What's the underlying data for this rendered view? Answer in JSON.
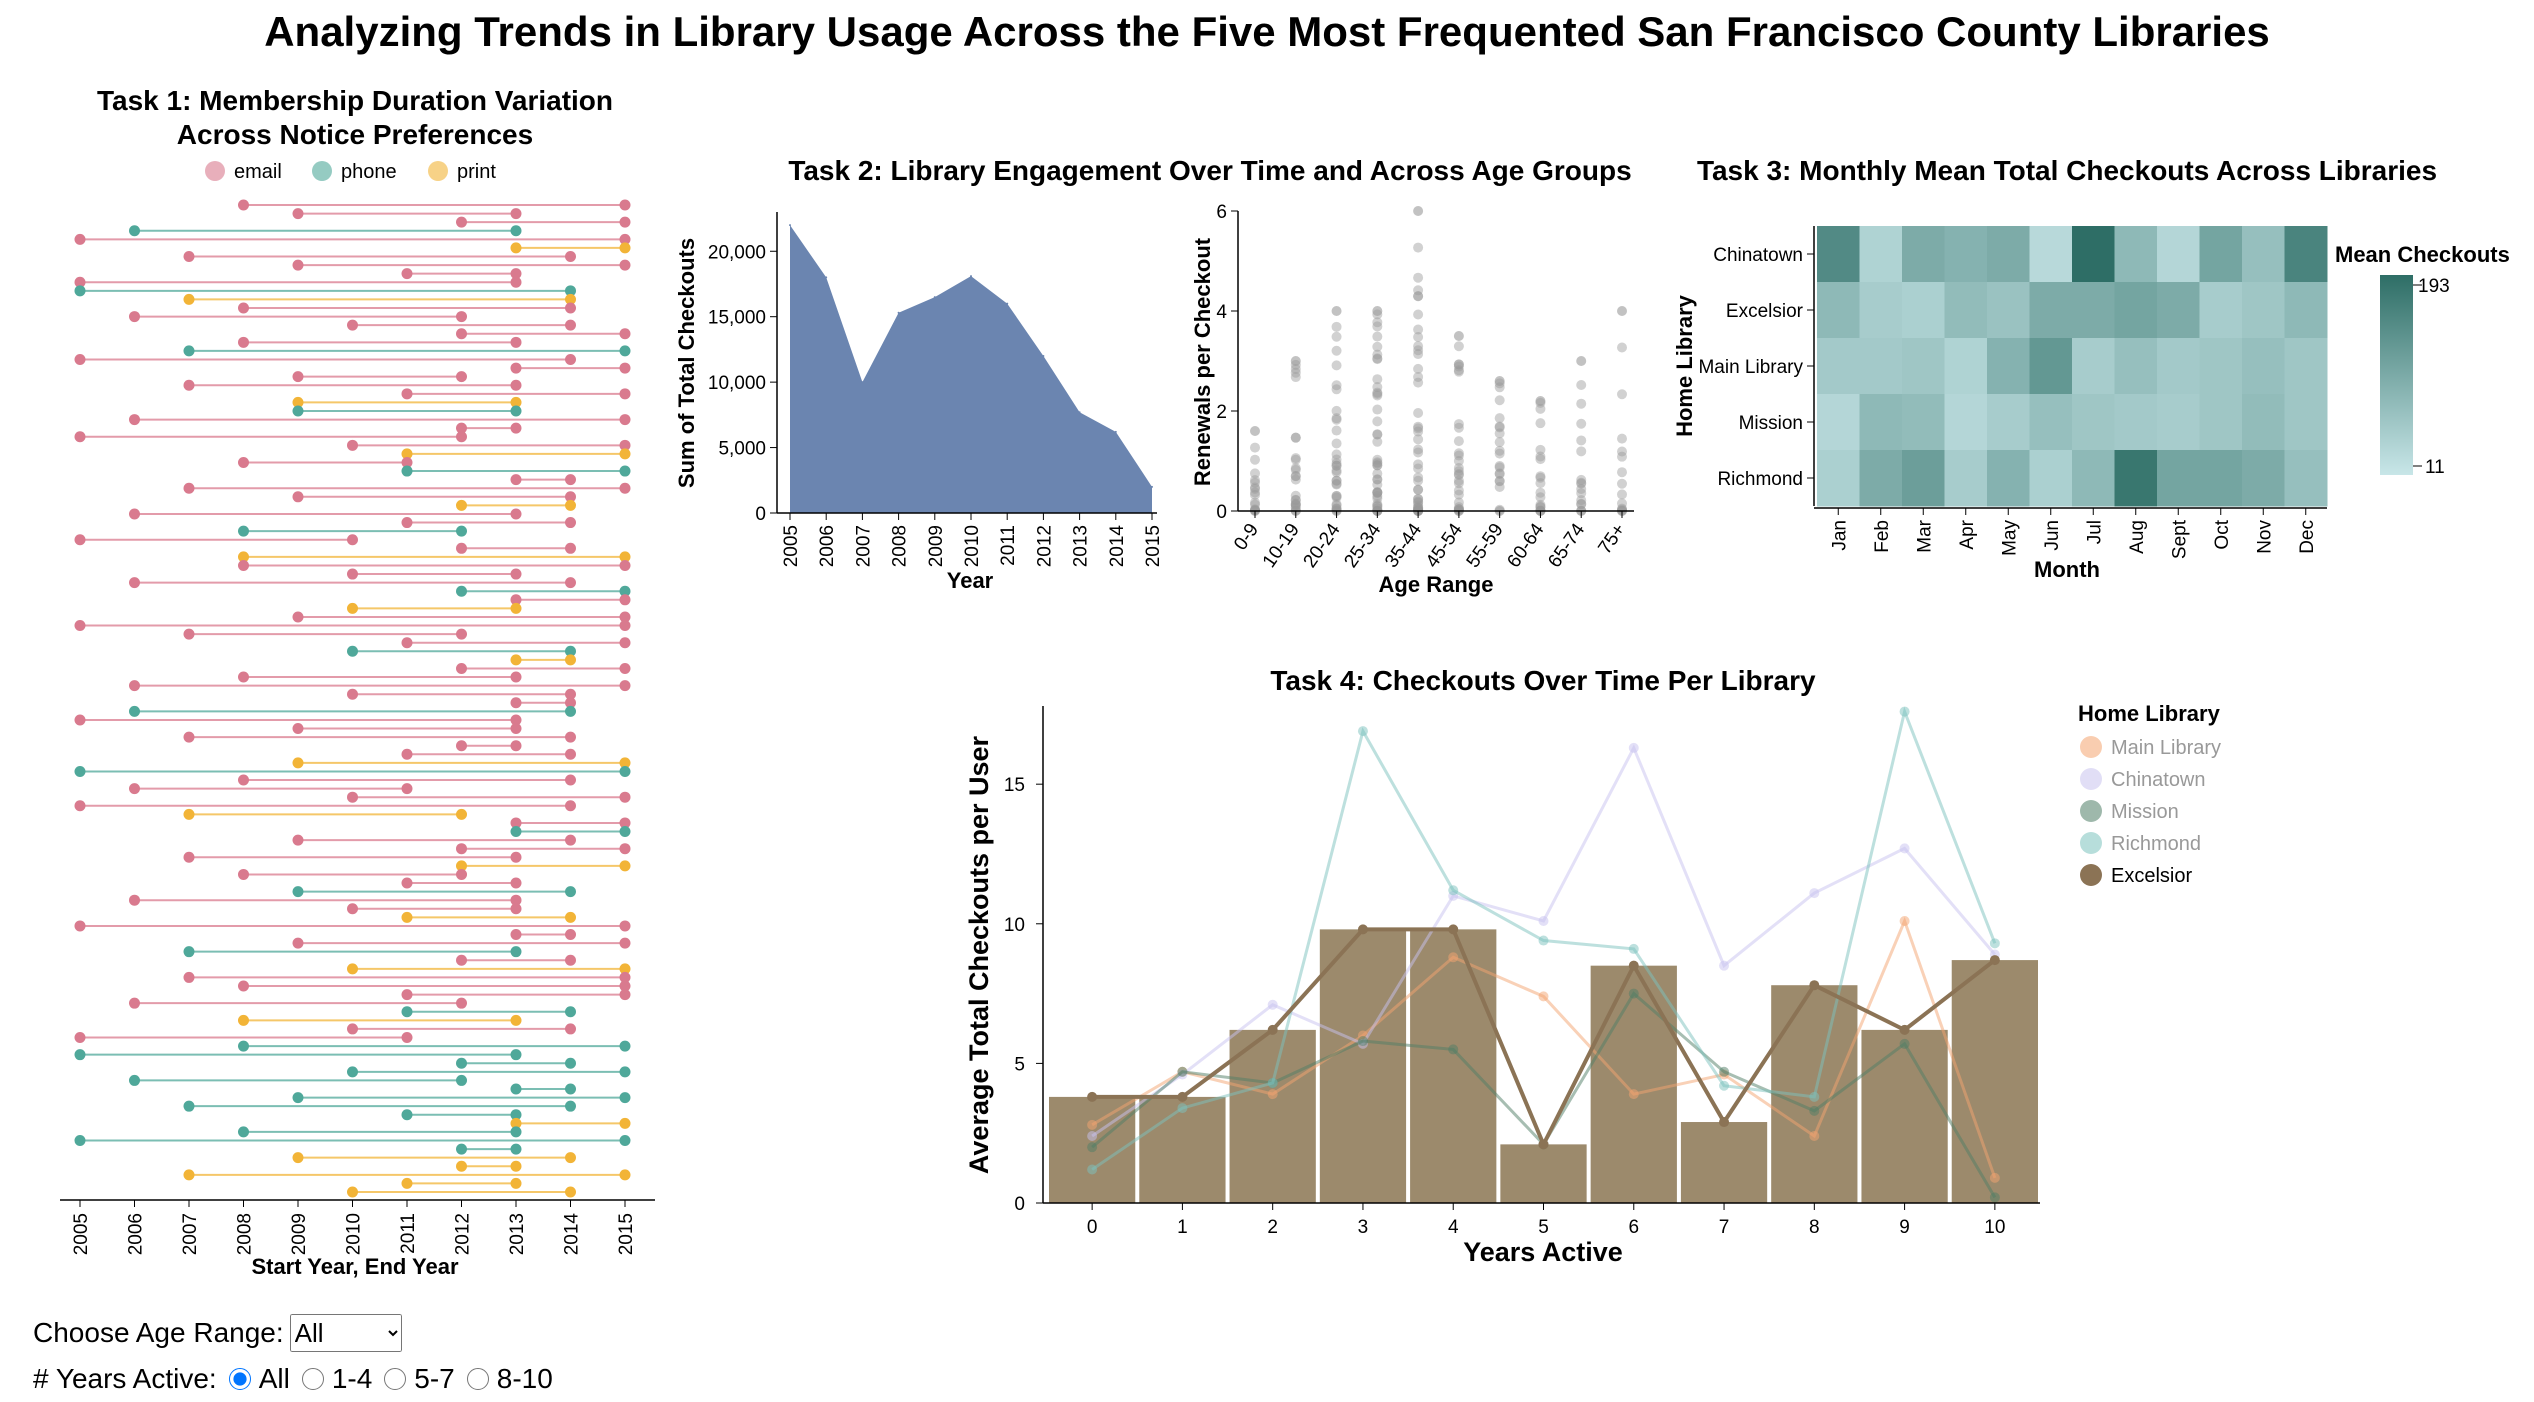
{
  "title": "Analyzing Trends in Library Usage Across the Five Most Frequented San Francisco County Libraries",
  "colors": {
    "email": "#d97a8e",
    "phone": "#4fa89a",
    "print": "#f2b437",
    "area": "#6b85b0",
    "grey": "#9a9a9a",
    "excelsior": "#8b7355",
    "main_library": "#f4a46f",
    "chinatown": "#c8c2ef",
    "mission": "#4f7d66",
    "richmond": "#7cc2bd"
  },
  "controls": {
    "age_label": "Choose Age Range:",
    "age_selected": "All",
    "years_label": "# Years Active:",
    "years_options": [
      "All",
      "1-4",
      "5-7",
      "8-10"
    ],
    "years_selected": "All"
  },
  "chart_data": [
    {
      "type": "scatter",
      "title": "Task 1: Membership Duration Variation Across Notice Preferences",
      "xlabel": "Start Year, End Year",
      "x_ticks": [
        "2005",
        "2006",
        "2007",
        "2008",
        "2009",
        "2010",
        "2011",
        "2012",
        "2013",
        "2014",
        "2015"
      ],
      "legend": [
        "email",
        "phone",
        "print"
      ],
      "legend_position": "top",
      "series": [
        {
          "name": "email",
          "color": "#d97a8e",
          "values": [
            [
              2008,
              2015
            ],
            [
              2009,
              2013
            ],
            [
              2012,
              2015
            ],
            [
              2005,
              2015
            ],
            [
              2007,
              2014
            ],
            [
              2009,
              2015
            ],
            [
              2011,
              2013
            ],
            [
              2005,
              2013
            ],
            [
              2008,
              2014
            ],
            [
              2006,
              2012
            ],
            [
              2010,
              2014
            ],
            [
              2012,
              2015
            ],
            [
              2008,
              2013
            ],
            [
              2005,
              2014
            ],
            [
              2013,
              2015
            ],
            [
              2009,
              2012
            ],
            [
              2007,
              2013
            ],
            [
              2011,
              2015
            ],
            [
              2006,
              2015
            ],
            [
              2012,
              2013
            ],
            [
              2005,
              2012
            ],
            [
              2010,
              2015
            ],
            [
              2008,
              2011
            ],
            [
              2013,
              2014
            ],
            [
              2007,
              2015
            ],
            [
              2009,
              2014
            ],
            [
              2006,
              2013
            ],
            [
              2011,
              2014
            ],
            [
              2005,
              2010
            ],
            [
              2012,
              2014
            ],
            [
              2008,
              2015
            ],
            [
              2010,
              2013
            ],
            [
              2006,
              2014
            ],
            [
              2013,
              2015
            ],
            [
              2009,
              2015
            ],
            [
              2005,
              2015
            ],
            [
              2007,
              2012
            ],
            [
              2011,
              2015
            ],
            [
              2012,
              2015
            ],
            [
              2008,
              2013
            ],
            [
              2006,
              2015
            ],
            [
              2010,
              2014
            ],
            [
              2013,
              2014
            ],
            [
              2005,
              2013
            ],
            [
              2009,
              2013
            ],
            [
              2007,
              2014
            ],
            [
              2012,
              2013
            ],
            [
              2011,
              2014
            ],
            [
              2008,
              2014
            ],
            [
              2006,
              2011
            ],
            [
              2010,
              2015
            ],
            [
              2005,
              2014
            ],
            [
              2013,
              2015
            ],
            [
              2009,
              2014
            ],
            [
              2012,
              2015
            ],
            [
              2007,
              2013
            ],
            [
              2008,
              2012
            ],
            [
              2011,
              2013
            ],
            [
              2006,
              2013
            ],
            [
              2010,
              2013
            ],
            [
              2005,
              2015
            ],
            [
              2013,
              2014
            ],
            [
              2009,
              2015
            ],
            [
              2012,
              2014
            ],
            [
              2007,
              2015
            ],
            [
              2008,
              2015
            ],
            [
              2011,
              2015
            ],
            [
              2006,
              2012
            ],
            [
              2010,
              2014
            ],
            [
              2005,
              2011
            ]
          ]
        },
        {
          "name": "phone",
          "color": "#4fa89a",
          "values": [
            [
              2006,
              2013
            ],
            [
              2005,
              2014
            ],
            [
              2007,
              2015
            ],
            [
              2009,
              2013
            ],
            [
              2011,
              2015
            ],
            [
              2008,
              2012
            ],
            [
              2012,
              2015
            ],
            [
              2010,
              2014
            ],
            [
              2006,
              2014
            ],
            [
              2005,
              2015
            ],
            [
              2013,
              2015
            ],
            [
              2009,
              2014
            ],
            [
              2007,
              2013
            ],
            [
              2011,
              2014
            ],
            [
              2008,
              2015
            ],
            [
              2005,
              2013
            ],
            [
              2012,
              2014
            ],
            [
              2010,
              2015
            ],
            [
              2006,
              2012
            ],
            [
              2013,
              2014
            ],
            [
              2009,
              2015
            ],
            [
              2007,
              2014
            ],
            [
              2011,
              2013
            ],
            [
              2008,
              2013
            ],
            [
              2005,
              2015
            ],
            [
              2012,
              2013
            ]
          ]
        },
        {
          "name": "print",
          "color": "#f2b437",
          "values": [
            [
              2013,
              2015
            ],
            [
              2007,
              2014
            ],
            [
              2009,
              2013
            ],
            [
              2011,
              2015
            ],
            [
              2012,
              2014
            ],
            [
              2008,
              2015
            ],
            [
              2010,
              2013
            ],
            [
              2013,
              2014
            ],
            [
              2009,
              2015
            ],
            [
              2007,
              2012
            ],
            [
              2012,
              2015
            ],
            [
              2011,
              2014
            ],
            [
              2010,
              2015
            ],
            [
              2008,
              2013
            ],
            [
              2013,
              2015
            ],
            [
              2009,
              2014
            ],
            [
              2012,
              2013
            ],
            [
              2007,
              2015
            ],
            [
              2011,
              2013
            ],
            [
              2010,
              2014
            ]
          ]
        }
      ]
    },
    {
      "type": "area",
      "title": "Task 2: Library Engagement Over Time and Across Age Groups",
      "xlabel": "Year",
      "ylabel": "Sum of Total Checkouts",
      "x": [
        2005,
        2006,
        2007,
        2008,
        2009,
        2010,
        2011,
        2012,
        2013,
        2014,
        2015
      ],
      "values": [
        22000,
        18000,
        10000,
        15300,
        16500,
        18100,
        16000,
        12000,
        7700,
        6200,
        2000
      ],
      "ylim": [
        0,
        23000
      ],
      "y_ticks": [
        "0",
        "5,000",
        "10,000",
        "15,000",
        "20,000"
      ]
    },
    {
      "type": "scatter",
      "xlabel": "Age Range",
      "ylabel": "Renewals per Checkout",
      "categories": [
        "0-9",
        "10-19",
        "20-24",
        "25-34",
        "35-44",
        "45-54",
        "55-59",
        "60-64",
        "65-74",
        "75+"
      ],
      "ylim": [
        0,
        6
      ],
      "y_ticks": [
        "0",
        "2",
        "4",
        "6"
      ],
      "max_values": [
        1.6,
        3,
        4,
        4,
        6,
        3.5,
        2.6,
        2.2,
        3,
        4
      ]
    },
    {
      "type": "heatmap",
      "title": "Task 3: Monthly Mean Total Checkouts Across Libraries",
      "xlabel": "Month",
      "ylabel": "Home Library",
      "x": [
        "Jan",
        "Feb",
        "Mar",
        "Apr",
        "May",
        "Jun",
        "Jul",
        "Aug",
        "Sept",
        "Oct",
        "Nov",
        "Dec"
      ],
      "y": [
        "Chinatown",
        "Excelsior",
        "Main Library",
        "Mission",
        "Richmond"
      ],
      "values": [
        [
          150,
          40,
          100,
          90,
          100,
          30,
          193,
          80,
          35,
          110,
          70,
          160
        ],
        [
          80,
          50,
          45,
          75,
          65,
          100,
          100,
          110,
          100,
          50,
          60,
          80
        ],
        [
          55,
          55,
          60,
          40,
          90,
          130,
          50,
          70,
          55,
          60,
          70,
          60
        ],
        [
          35,
          80,
          75,
          35,
          50,
          70,
          60,
          55,
          50,
          60,
          75,
          60
        ],
        [
          45,
          100,
          120,
          50,
          90,
          45,
          80,
          180,
          110,
          110,
          100,
          70
        ]
      ],
      "legend_title": "Mean Checkouts",
      "scale": [
        "11",
        "193"
      ]
    },
    {
      "type": "bar",
      "title": "Task 4: Checkouts Over Time Per Library",
      "xlabel": "Years Active",
      "ylabel": "Average Total Checkouts per User",
      "categories": [
        "0",
        "1",
        "2",
        "3",
        "4",
        "5",
        "6",
        "7",
        "8",
        "9",
        "10"
      ],
      "ylim": [
        0,
        17.8
      ],
      "y_ticks": [
        "0",
        "5",
        "10",
        "15"
      ],
      "legend_title": "Home Library",
      "series": [
        {
          "name": "Excelsior",
          "highlighted": true,
          "values": [
            3.8,
            3.8,
            6.2,
            9.8,
            9.8,
            2.1,
            8.5,
            2.9,
            7.8,
            6.2,
            8.7
          ]
        },
        {
          "name": "Main Library",
          "values": [
            2.8,
            4.7,
            3.9,
            6.0,
            8.8,
            7.4,
            3.9,
            4.6,
            2.4,
            10.1,
            0.9
          ]
        },
        {
          "name": "Chinatown",
          "values": [
            2.4,
            4.6,
            7.1,
            5.7,
            11.0,
            10.1,
            16.3,
            8.5,
            11.1,
            12.7,
            8.9
          ]
        },
        {
          "name": "Mission",
          "values": [
            2.0,
            4.7,
            4.3,
            5.8,
            5.5,
            2.1,
            7.5,
            4.7,
            3.3,
            5.7,
            0.2
          ]
        },
        {
          "name": "Richmond",
          "values": [
            1.2,
            3.4,
            4.3,
            16.9,
            11.2,
            9.4,
            9.1,
            4.2,
            3.8,
            17.6,
            9.3
          ]
        }
      ]
    }
  ]
}
